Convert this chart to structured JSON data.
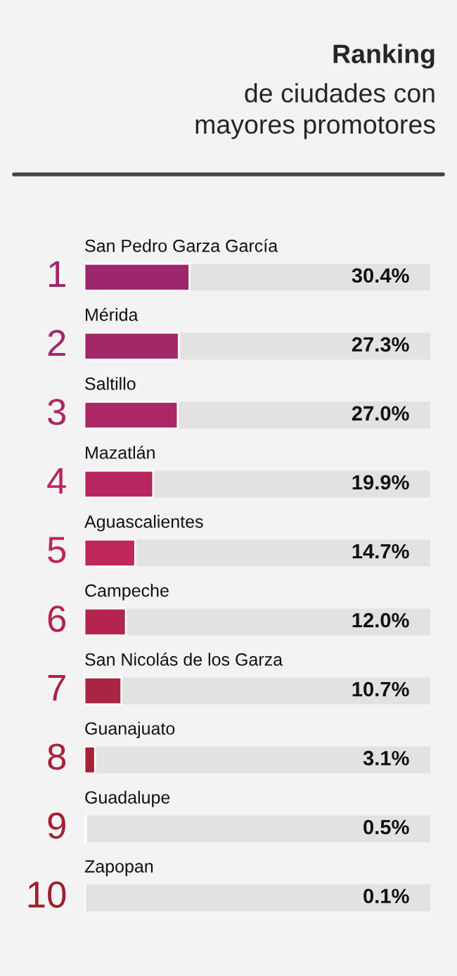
{
  "chart_data": {
    "type": "bar",
    "orientation": "horizontal",
    "title": "Ranking",
    "subtitle": "de ciudades con\nmayores promotores",
    "categories": [
      "San Pedro Garza García",
      "Mérida",
      "Saltillo",
      "Mazatlán",
      "Aguascalientes",
      "Campeche",
      "San Nicolás de los Garza",
      "Guanajuato",
      "Guadalupe",
      "Zapopan"
    ],
    "values": [
      30.4,
      27.3,
      27.0,
      19.9,
      14.7,
      12.0,
      10.7,
      3.1,
      0.5,
      0.1
    ],
    "colors": [
      "#9c276c",
      "#a2286a",
      "#ac2763",
      "#b5275e",
      "#bf2659",
      "#b4244f",
      "#aa2444",
      "#a52338",
      "#a12233",
      "#9c1f2f"
    ],
    "value_labels": [
      "30.4%",
      "27.3%",
      "27.0%",
      "19.9%",
      "14.7%",
      "12.0%",
      "10.7%",
      "3.1%",
      "0.5%",
      "0.1%"
    ],
    "xlim": [
      0,
      100
    ],
    "annotations": [
      "1",
      "2",
      "3",
      "4",
      "5",
      "6",
      "7",
      "8",
      "9",
      "10"
    ]
  }
}
